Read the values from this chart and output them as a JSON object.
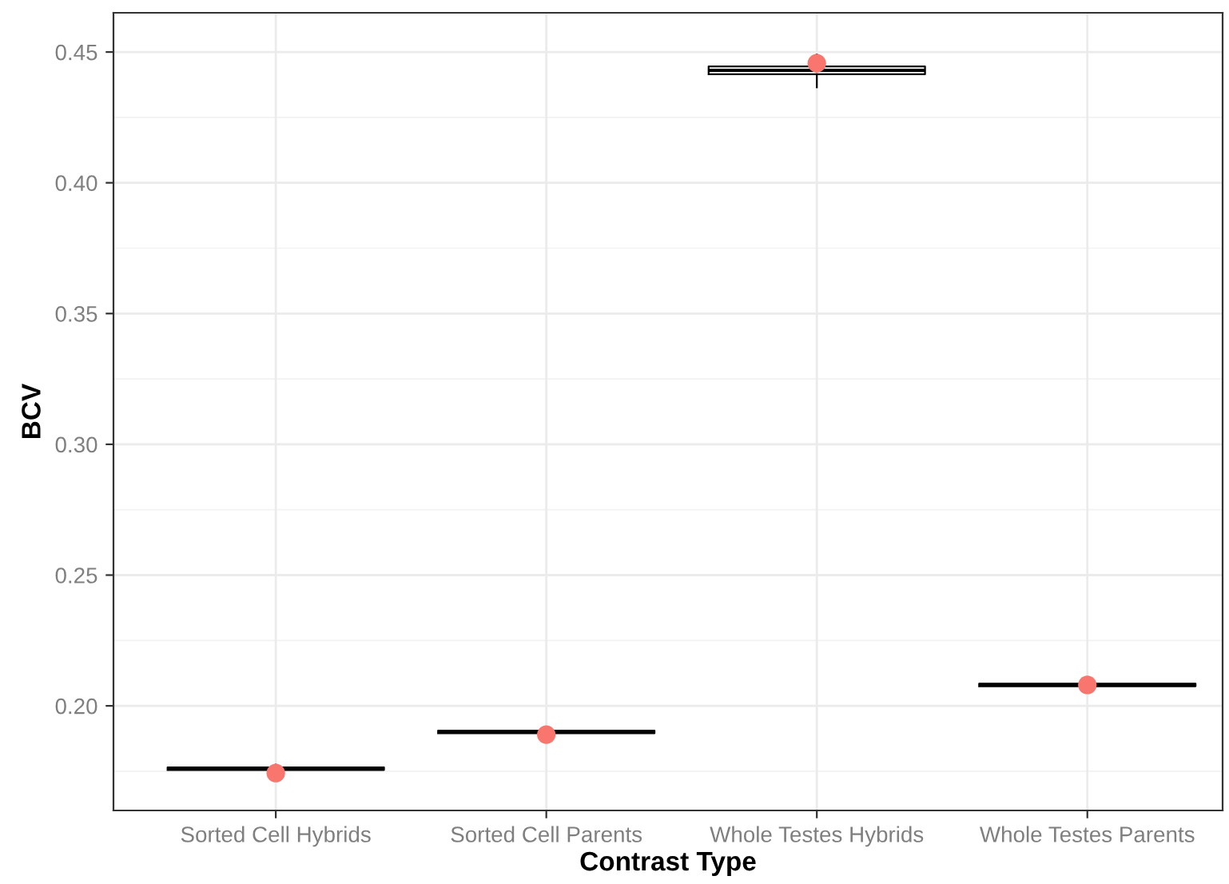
{
  "chart_data": {
    "type": "box",
    "xlabel": "Contrast Type",
    "ylabel": "BCV",
    "categories": [
      "Sorted Cell Hybrids",
      "Sorted Cell Parents",
      "Whole Testes Hybrids",
      "Whole Testes Parents"
    ],
    "ylim": [
      0.16,
      0.465
    ],
    "yticks": [
      {
        "value": 0.2,
        "label": "0.20"
      },
      {
        "value": 0.25,
        "label": "0.25"
      },
      {
        "value": 0.3,
        "label": "0.30"
      },
      {
        "value": 0.35,
        "label": "0.35"
      },
      {
        "value": 0.4,
        "label": "0.40"
      },
      {
        "value": 0.45,
        "label": "0.45"
      }
    ],
    "grid": true,
    "boxes": [
      {
        "low": 0.1745,
        "q1": 0.1755,
        "median": 0.176,
        "q3": 0.1765,
        "high": 0.1775
      },
      {
        "low": 0.1885,
        "q1": 0.1895,
        "median": 0.19,
        "q3": 0.1905,
        "high": 0.1915
      },
      {
        "low": 0.4365,
        "q1": 0.4415,
        "median": 0.443,
        "q3": 0.4445,
        "high": 0.449
      },
      {
        "low": 0.2065,
        "q1": 0.2075,
        "median": 0.208,
        "q3": 0.2085,
        "high": 0.2095
      }
    ],
    "series": [
      {
        "type": "scatter",
        "color": "#f8766d",
        "marker": "circle",
        "x": [
          "Sorted Cell Hybrids",
          "Sorted Cell Parents",
          "Whole Testes Hybrids",
          "Whole Testes Parents"
        ],
        "values": [
          0.1743,
          0.189,
          0.4457,
          0.208
        ]
      }
    ]
  }
}
